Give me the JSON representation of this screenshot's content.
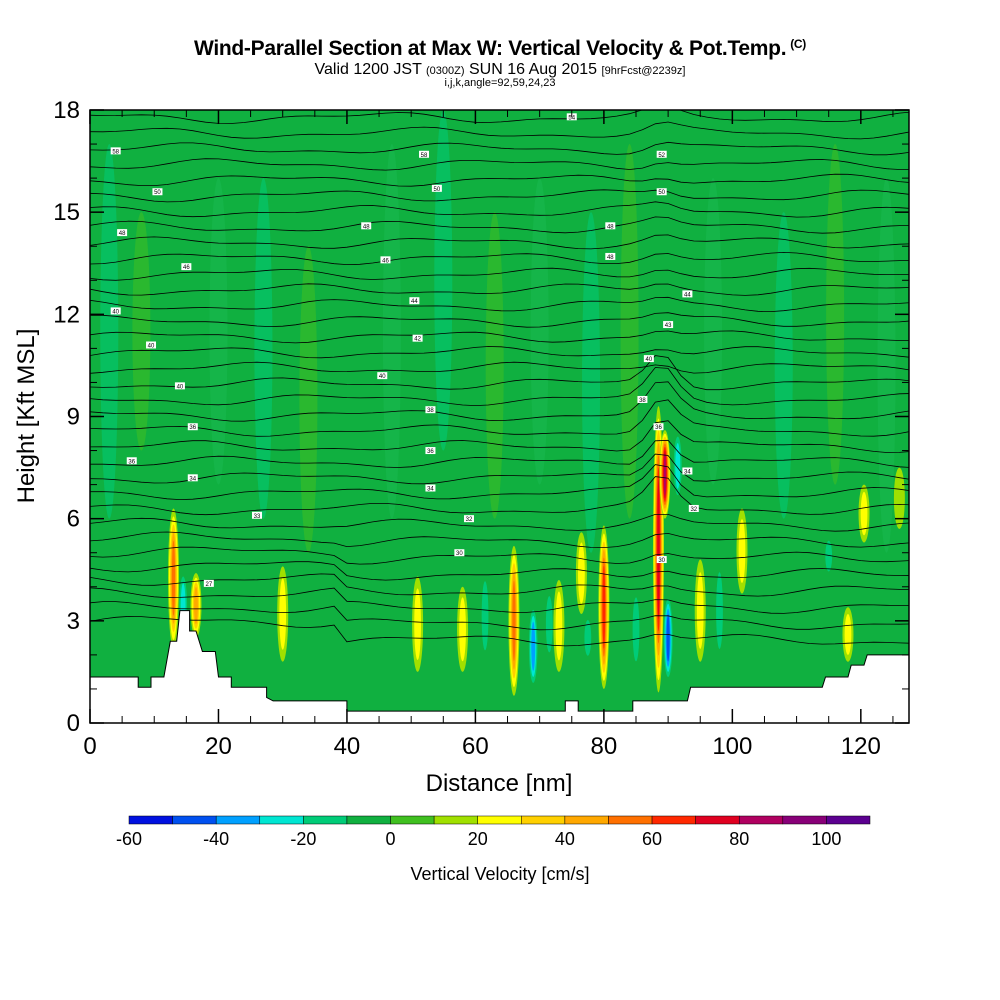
{
  "title": {
    "main": "Wind-Parallel Section at Max W: Vertical Velocity & Pot.Temp.",
    "copyright": "(C)",
    "valid_prefix": "Valid 1200 JST",
    "valid_utc": "(0300Z)",
    "valid_date": "SUN 16 Aug 2015",
    "forecast": "[9hrFcst@2239z]",
    "indices": "i,j,k,angle=92,59,24,23"
  },
  "chart_data": {
    "type": "heatmap",
    "xlabel": "Distance [nm]",
    "ylabel": "Height [Kft MSL]",
    "xlim": [
      0,
      127.5
    ],
    "ylim": [
      0,
      18
    ],
    "x_ticks": [
      0,
      20,
      40,
      60,
      80,
      100,
      120
    ],
    "y_ticks": [
      0,
      3,
      6,
      9,
      12,
      15,
      18
    ],
    "colorbar": {
      "label": "Vertical Velocity [cm/s]",
      "range": [
        -60,
        110
      ],
      "step": 10,
      "tick_labels": [
        -60,
        -40,
        -20,
        0,
        20,
        40,
        60,
        80,
        100
      ],
      "colors": [
        "#0010e0",
        "#0050f0",
        "#00a0ff",
        "#00e6d2",
        "#00cc78",
        "#10b040",
        "#40c020",
        "#a0e000",
        "#ffff00",
        "#ffd000",
        "#ffa800",
        "#ff7000",
        "#ff2800",
        "#e00020",
        "#b00060",
        "#880078",
        "#5c0090"
      ]
    },
    "background_w": 0,
    "updrafts": [
      {
        "x": 13,
        "z_bot": 2.2,
        "z_top": 6.3,
        "w": 55
      },
      {
        "x": 16.5,
        "z_bot": 2.5,
        "z_top": 4.4,
        "w": 40
      },
      {
        "x": 30,
        "z_bot": 1.8,
        "z_top": 4.6,
        "w": 22
      },
      {
        "x": 51,
        "z_bot": 1.5,
        "z_top": 4.3,
        "w": 28
      },
      {
        "x": 58,
        "z_bot": 1.5,
        "z_top": 4.0,
        "w": 26
      },
      {
        "x": 66,
        "z_bot": 0.8,
        "z_top": 5.2,
        "w": 58
      },
      {
        "x": 73,
        "z_bot": 1.5,
        "z_top": 4.2,
        "w": 24
      },
      {
        "x": 76.5,
        "z_bot": 3.2,
        "z_top": 5.6,
        "w": 24
      },
      {
        "x": 80,
        "z_bot": 1.0,
        "z_top": 5.8,
        "w": 62
      },
      {
        "x": 88.5,
        "z_bot": 0.9,
        "z_top": 9.3,
        "w": 72
      },
      {
        "x": 89.5,
        "z_bot": 6.0,
        "z_top": 8.6,
        "w": 85
      },
      {
        "x": 95,
        "z_bot": 1.8,
        "z_top": 4.8,
        "w": 22
      },
      {
        "x": 101.5,
        "z_bot": 3.8,
        "z_top": 6.3,
        "w": 28
      },
      {
        "x": 120.5,
        "z_bot": 5.3,
        "z_top": 7.0,
        "w": 24
      },
      {
        "x": 118,
        "z_bot": 1.8,
        "z_top": 3.4,
        "w": 22
      },
      {
        "x": 126,
        "z_bot": 5.7,
        "z_top": 7.5,
        "w": 18
      }
    ],
    "downdrafts": [
      {
        "x": 14.5,
        "z_bot": 2.3,
        "z_top": 4.5,
        "w": -30
      },
      {
        "x": 43,
        "z_bot": 1.5,
        "z_top": 4.0,
        "w": -14
      },
      {
        "x": 55.5,
        "z_bot": 1.5,
        "z_top": 4.0,
        "w": -18
      },
      {
        "x": 61.5,
        "z_bot": 1.8,
        "z_top": 4.5,
        "w": -22
      },
      {
        "x": 69,
        "z_bot": 1.0,
        "z_top": 3.5,
        "w": -48
      },
      {
        "x": 71.5,
        "z_bot": 1.8,
        "z_top": 4.0,
        "w": -22
      },
      {
        "x": 77.5,
        "z_bot": 1.8,
        "z_top": 3.2,
        "w": -20
      },
      {
        "x": 85,
        "z_bot": 1.5,
        "z_top": 4.0,
        "w": -22
      },
      {
        "x": 90,
        "z_bot": 1.2,
        "z_top": 3.8,
        "w": -55
      },
      {
        "x": 91.5,
        "z_bot": 6.5,
        "z_top": 8.6,
        "w": -30
      },
      {
        "x": 98,
        "z_bot": 1.8,
        "z_top": 4.8,
        "w": -22
      },
      {
        "x": 105,
        "z_bot": 1.5,
        "z_top": 3.6,
        "w": -14
      },
      {
        "x": 115,
        "z_bot": 4.3,
        "z_top": 5.5,
        "w": -25
      }
    ],
    "terrain_kft": [
      [
        0,
        1.35
      ],
      [
        7.5,
        1.35
      ],
      [
        7.5,
        1.05
      ],
      [
        9.5,
        1.05
      ],
      [
        9.5,
        1.35
      ],
      [
        11.5,
        1.35
      ],
      [
        12.5,
        2.4
      ],
      [
        13.5,
        2.4
      ],
      [
        14,
        3.3
      ],
      [
        15.5,
        3.3
      ],
      [
        15.5,
        2.7
      ],
      [
        16.5,
        2.7
      ],
      [
        17.5,
        2.1
      ],
      [
        19.5,
        2.1
      ],
      [
        20,
        1.35
      ],
      [
        22,
        1.35
      ],
      [
        22,
        1.05
      ],
      [
        27.5,
        1.05
      ],
      [
        27.5,
        0.75
      ],
      [
        28.5,
        0.65
      ],
      [
        40,
        0.65
      ],
      [
        40,
        0.35
      ],
      [
        74,
        0.35
      ],
      [
        74,
        0.65
      ],
      [
        76,
        0.65
      ],
      [
        76,
        0.35
      ],
      [
        84.5,
        0.35
      ],
      [
        84.5,
        0.65
      ],
      [
        93,
        0.65
      ],
      [
        93.5,
        1.05
      ],
      [
        114,
        1.05
      ],
      [
        114.5,
        1.35
      ],
      [
        118,
        1.35
      ],
      [
        118.5,
        1.7
      ],
      [
        120.5,
        1.7
      ],
      [
        121,
        2.0
      ],
      [
        127.5,
        2.0
      ]
    ],
    "theta_contour_labels": [
      {
        "x": 4,
        "z": 16.8,
        "label": "58"
      },
      {
        "x": 10.5,
        "z": 15.6,
        "label": "50"
      },
      {
        "x": 5,
        "z": 14.4,
        "label": "48"
      },
      {
        "x": 15,
        "z": 13.4,
        "label": "46"
      },
      {
        "x": 4,
        "z": 12.1,
        "label": "40"
      },
      {
        "x": 9.5,
        "z": 11.1,
        "label": "40"
      },
      {
        "x": 14,
        "z": 9.9,
        "label": "40"
      },
      {
        "x": 16,
        "z": 8.7,
        "label": "36"
      },
      {
        "x": 6.5,
        "z": 7.7,
        "label": "36"
      },
      {
        "x": 16,
        "z": 7.2,
        "label": "34"
      },
      {
        "x": 26,
        "z": 6.1,
        "label": "33"
      },
      {
        "x": 18.5,
        "z": 4.1,
        "label": "27"
      },
      {
        "x": 52,
        "z": 16.7,
        "label": "58"
      },
      {
        "x": 54,
        "z": 15.7,
        "label": "50"
      },
      {
        "x": 43,
        "z": 14.6,
        "label": "48"
      },
      {
        "x": 46,
        "z": 13.6,
        "label": "46"
      },
      {
        "x": 50.5,
        "z": 12.4,
        "label": "44"
      },
      {
        "x": 51,
        "z": 11.3,
        "label": "42"
      },
      {
        "x": 45.5,
        "z": 10.2,
        "label": "40"
      },
      {
        "x": 53,
        "z": 9.2,
        "label": "38"
      },
      {
        "x": 53,
        "z": 8.0,
        "label": "36"
      },
      {
        "x": 53,
        "z": 6.9,
        "label": "34"
      },
      {
        "x": 59,
        "z": 6.0,
        "label": "32"
      },
      {
        "x": 57.5,
        "z": 5.0,
        "label": "30"
      },
      {
        "x": 75,
        "z": 17.8,
        "label": "54"
      },
      {
        "x": 89,
        "z": 16.7,
        "label": "52"
      },
      {
        "x": 89,
        "z": 15.6,
        "label": "50"
      },
      {
        "x": 81,
        "z": 14.6,
        "label": "48"
      },
      {
        "x": 81,
        "z": 13.7,
        "label": "48"
      },
      {
        "x": 93,
        "z": 12.6,
        "label": "44"
      },
      {
        "x": 90,
        "z": 11.7,
        "label": "43"
      },
      {
        "x": 87,
        "z": 10.7,
        "label": "40"
      },
      {
        "x": 86,
        "z": 9.5,
        "label": "38"
      },
      {
        "x": 88.5,
        "z": 8.7,
        "label": "36"
      },
      {
        "x": 93,
        "z": 7.4,
        "label": "34"
      },
      {
        "x": 94,
        "z": 6.3,
        "label": "32"
      },
      {
        "x": 89,
        "z": 4.8,
        "label": "30"
      }
    ]
  }
}
